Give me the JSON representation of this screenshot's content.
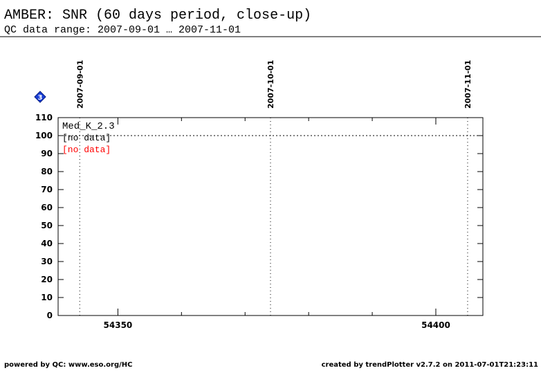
{
  "title": "AMBER: SNR (60 days period, close-up)",
  "subtitle": "QC data range: 2007-09-01 … 2007-11-01",
  "footer_left": "powered by QC: www.eso.org/HC",
  "footer_right": "created by trendPlotter v2.7.2 on 2011-07-01T21:23:11",
  "chart_data": {
    "type": "scatter",
    "badge": "3",
    "panel_label": "Med_K_2.3",
    "series": [
      {
        "name": "[no data]",
        "color": "#000000",
        "x": [],
        "values": []
      },
      {
        "name": "[no data]",
        "color": "#ff0000",
        "x": [],
        "values": []
      }
    ],
    "xlim": [
      54340.6,
      54407.4
    ],
    "xticks": [
      54350,
      54400
    ],
    "xminorticks": [
      54360,
      54370,
      54380,
      54390
    ],
    "ylim": [
      0,
      110
    ],
    "yticks": [
      0,
      10,
      20,
      30,
      40,
      50,
      60,
      70,
      80,
      90,
      100,
      110
    ],
    "reference_line": 100,
    "date_markers": [
      {
        "value": 54344,
        "label": "2007-09-01"
      },
      {
        "value": 54374,
        "label": "2007-10-01"
      },
      {
        "value": 54405,
        "label": "2007-11-01"
      }
    ]
  }
}
